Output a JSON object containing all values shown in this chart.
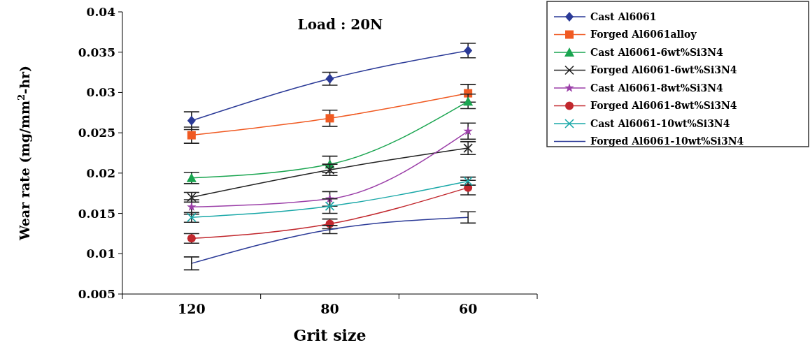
{
  "chart_data": {
    "type": "line",
    "title": "Load : 20N",
    "xlabel": "Grit size",
    "ylabel": "Wear rate (mg/mm$^{2}$-hr)",
    "categories": [
      "120",
      "80",
      "60"
    ],
    "ylim": [
      0.005,
      0.04
    ],
    "yticks": [
      0.005,
      0.01,
      0.015,
      0.02,
      0.025,
      0.03,
      0.035,
      0.04
    ],
    "grid": false,
    "legend": "right",
    "series": [
      {
        "name": "Cast Al6061",
        "color": "#2b3a97",
        "marker": "diamond",
        "values": [
          0.0265,
          0.0317,
          0.0352
        ],
        "errors": [
          0.0011,
          0.0008,
          0.0009
        ]
      },
      {
        "name": "Forged  Al6061alloy",
        "color": "#f05a22",
        "marker": "square",
        "values": [
          0.0247,
          0.0268,
          0.0299
        ],
        "errors": [
          0.001,
          0.001,
          0.0011
        ]
      },
      {
        "name": "Cast Al6061-6wt%Si3N4",
        "color": "#1aa550",
        "marker": "triangle",
        "values": [
          0.0194,
          0.0211,
          0.0289
        ],
        "errors": [
          0.0007,
          0.001,
          0.0009
        ]
      },
      {
        "name": "Forged Al6061-6wt%Si3N4",
        "color": "#222222",
        "marker": "cross",
        "values": [
          0.017,
          0.0204,
          0.0231
        ],
        "errors": [
          0.0006,
          0.0007,
          0.0008
        ]
      },
      {
        "name": "Cast Al6061-8wt%Si3N4",
        "color": "#9b3fa8",
        "marker": "star",
        "values": [
          0.0158,
          0.0168,
          0.0252
        ],
        "errors": [
          0.0009,
          0.0009,
          0.001
        ]
      },
      {
        "name": "Forged Al6061-8wt%Si3N4",
        "color": "#c1272d",
        "marker": "circle",
        "values": [
          0.0119,
          0.0137,
          0.0182
        ],
        "errors": [
          0.0006,
          0.0006,
          0.0009
        ]
      },
      {
        "name": "Cast Al6061-10wt%Si3N4",
        "color": "#1aa8a8",
        "marker": "cross",
        "values": [
          0.0145,
          0.0159,
          0.019
        ],
        "errors": [
          0.0006,
          0.0009,
          0.0005
        ]
      },
      {
        "name": "Forged Al6061-10wt%Si3N4",
        "color": "#2b3a97",
        "marker": "none",
        "values": [
          0.0088,
          0.013,
          0.0145
        ],
        "errors": [
          0.0008,
          0.0005,
          0.0007
        ]
      }
    ]
  }
}
